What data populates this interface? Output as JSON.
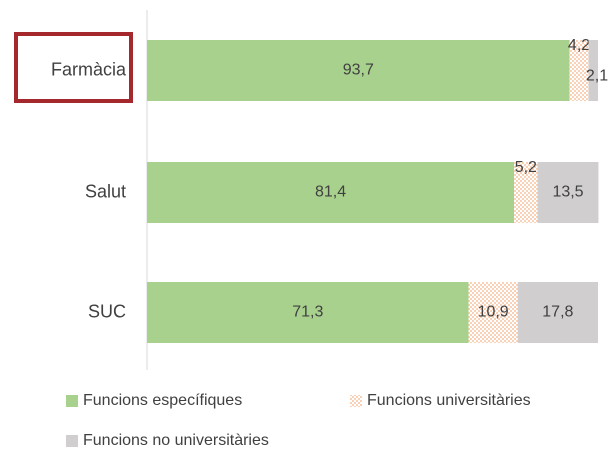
{
  "chart_data": {
    "type": "stacked-barh",
    "categories": [
      "Farmàcia",
      "Salut",
      "SUC"
    ],
    "xlim": [
      0,
      100
    ],
    "series": [
      {
        "name": "Funcions específiques",
        "color": "#a9d18e",
        "values": [
          93.7,
          81.4,
          71.3
        ],
        "value_labels": [
          "93,7",
          "81,4",
          "71,3"
        ]
      },
      {
        "name": "Funcions universitàries",
        "color": "#f4b183",
        "pattern": "dots",
        "values": [
          4.2,
          5.2,
          10.9
        ],
        "value_labels": [
          "4,2",
          "5,2",
          "10,9"
        ]
      },
      {
        "name": "Funcions no universitàries",
        "color": "#d0cece",
        "values": [
          2.1,
          13.5,
          17.8
        ],
        "value_labels": [
          "2,1",
          "13,5",
          "17,8"
        ]
      }
    ]
  }
}
